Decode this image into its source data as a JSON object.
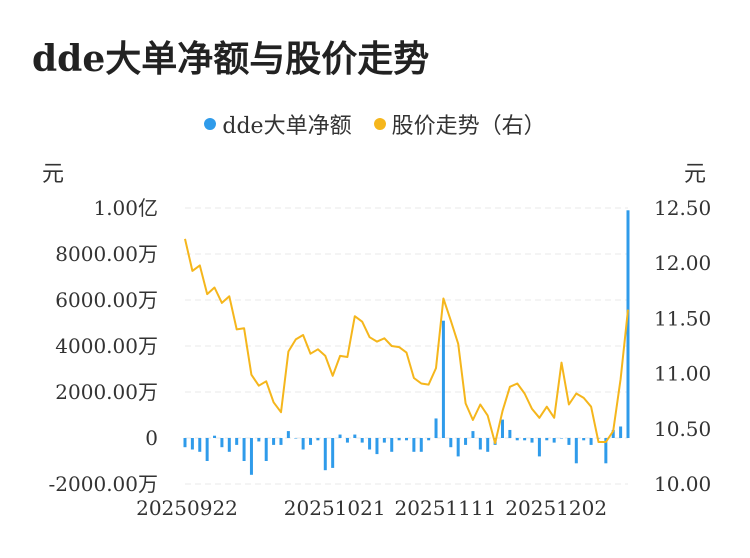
{
  "title": "dde大单净额与股价走势",
  "legend": [
    {
      "label": "dde大单净额",
      "color": "#2f9bea"
    },
    {
      "label": "股价走势（右）",
      "color": "#f5b61c"
    }
  ],
  "chart_data": {
    "type": "bar+line",
    "title": "dde大单净额与股价走势",
    "left_axis": {
      "unit": "元",
      "min": -20000000,
      "max": 100000000,
      "ticks": [
        100000000,
        80000000,
        60000000,
        40000000,
        20000000,
        0,
        -20000000
      ],
      "tick_labels": [
        "1.00亿",
        "8000.00万",
        "6000.00万",
        "4000.00万",
        "2000.00万",
        "0",
        "-2000.00万"
      ]
    },
    "right_axis": {
      "unit": "元",
      "min": 10.0,
      "max": 12.5,
      "ticks": [
        12.5,
        12.0,
        11.5,
        11.0,
        10.5,
        10.0
      ],
      "tick_labels": [
        "12.50",
        "12.00",
        "11.50",
        "11.00",
        "10.50",
        "10.00"
      ]
    },
    "x_tick_labels": [
      {
        "label": "20250922",
        "index": 0
      },
      {
        "label": "20251021",
        "index": 20
      },
      {
        "label": "20251111",
        "index": 35
      },
      {
        "label": "20251202",
        "index": 50
      }
    ],
    "grid": true,
    "legend_position": "top-center",
    "series": [
      {
        "name": "dde大单净额",
        "type": "bar",
        "color": "#2f9bea",
        "values": [
          -4000000,
          -5000000,
          -6000000,
          -10000000,
          1000000,
          -4000000,
          -6000000,
          -3000000,
          -10000000,
          -16000000,
          -1500000,
          -10000000,
          -3000000,
          -3000000,
          3000000,
          0,
          -5000000,
          -3000000,
          -1000000,
          -14000000,
          -13000000,
          1500000,
          -2000000,
          1500000,
          -2000000,
          -5000000,
          -7000000,
          -2000000,
          -6000000,
          -1000000,
          -1000000,
          -6000000,
          -6000000,
          -1000000,
          8500000,
          51000000,
          -4000000,
          -8000000,
          -3000000,
          3000000,
          -5000000,
          -6000000,
          -3000000,
          8000000,
          3500000,
          -1000000,
          -1000000,
          -2000000,
          -8000000,
          -1000000,
          -2000000,
          0,
          -3000000,
          -11000000,
          -1000000,
          -3000000,
          0,
          -11000000,
          3500000,
          5000000,
          99000000
        ],
        "values_label": "元"
      },
      {
        "name": "股价走势（右）",
        "type": "line",
        "color": "#f5b61c",
        "values": [
          12.22,
          11.93,
          11.98,
          11.72,
          11.78,
          11.64,
          11.7,
          11.4,
          11.41,
          10.99,
          10.89,
          10.93,
          10.74,
          10.65,
          11.2,
          11.31,
          11.35,
          11.18,
          11.22,
          11.16,
          10.98,
          11.16,
          11.15,
          11.52,
          11.47,
          11.33,
          11.29,
          11.32,
          11.25,
          11.24,
          11.19,
          10.96,
          10.91,
          10.9,
          11.05,
          11.68,
          11.48,
          11.27,
          10.73,
          10.58,
          10.72,
          10.62,
          10.37,
          10.66,
          10.88,
          10.91,
          10.82,
          10.68,
          10.6,
          10.7,
          10.6,
          11.1,
          10.72,
          10.82,
          10.78,
          10.7,
          10.38,
          10.38,
          10.48,
          10.95,
          11.58
        ]
      }
    ]
  }
}
